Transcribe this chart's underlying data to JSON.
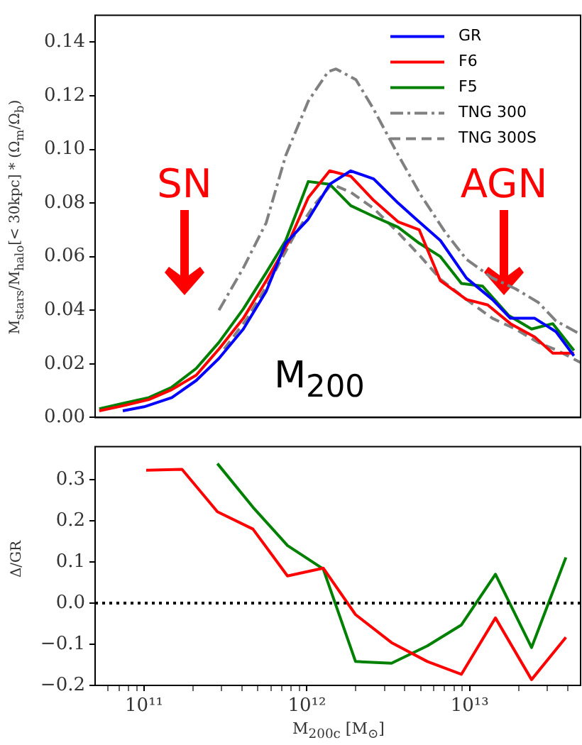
{
  "chart_data": [
    {
      "type": "line",
      "ylabel": "M$_{stars}$/M$_{halo}$[< 30kpc] * (Ω$_{m}$/Ω$_{b}$)",
      "annotations": [
        "SN",
        "AGN",
        "M$_{200}$"
      ],
      "log": "x",
      "xlim": [
        50000000000.0,
        48000000000000.0
      ],
      "ylim": [
        0,
        0.15
      ],
      "yticks": [
        {
          "value": 0,
          "label": "0.00"
        },
        0.02,
        0.04,
        0.06,
        0.08,
        {
          "value": 0.1,
          "label": "0.10"
        },
        0.12,
        0.14
      ],
      "tick_labels": "y",
      "legend": "top right",
      "series": [
        {
          "name": "GR",
          "color": "#0000ff",
          "line_style": "solid",
          "x": [
            74000000000.0,
            100000000000.0,
            148000000000.0,
            209000000000.0,
            288000000000.0,
            407000000000.0,
            562000000000.0,
            741000000000.0,
            1020000000000.0,
            1380000000000.0,
            1860000000000.0,
            2570000000000.0,
            3630000000000.0,
            4680000000000.0,
            6610000000000.0,
            9550000000000.0,
            13800000000000.0,
            17800000000000.0,
            25100000000000.0,
            33900000000000.0,
            43700000000000.0
          ],
          "values": [
            0.0025,
            0.004,
            0.0074,
            0.0138,
            0.022,
            0.033,
            0.047,
            0.065,
            0.074,
            0.087,
            0.092,
            0.089,
            0.08,
            0.074,
            0.066,
            0.052,
            0.044,
            0.037,
            0.037,
            0.032,
            0.023
          ]
        },
        {
          "name": "F6",
          "color": "#ff0000",
          "line_style": "solid",
          "x": [
            53000000000.0,
            76000000000.0,
            107000000000.0,
            148000000000.0,
            209000000000.0,
            288000000000.0,
            407000000000.0,
            562000000000.0,
            780000000000.0,
            1020000000000.0,
            1380000000000.0,
            1860000000000.0,
            2570000000000.0,
            3630000000000.0,
            4900000000000.0,
            6610000000000.0,
            9550000000000.0,
            12900000000000.0,
            17800000000000.0,
            25100000000000.0,
            32400000000000.0,
            43700000000000.0
          ],
          "values": [
            0.0025,
            0.0045,
            0.0067,
            0.0104,
            0.0158,
            0.0255,
            0.037,
            0.051,
            0.066,
            0.082,
            0.092,
            0.09,
            0.081,
            0.073,
            0.07,
            0.051,
            0.044,
            0.042,
            0.035,
            0.03,
            0.024,
            0.024
          ]
        },
        {
          "name": "F5",
          "color": "#008000",
          "line_style": "solid",
          "x": [
            53000000000.0,
            76000000000.0,
            107000000000.0,
            148000000000.0,
            209000000000.0,
            288000000000.0,
            407000000000.0,
            562000000000.0,
            741000000000.0,
            1020000000000.0,
            1380000000000.0,
            1860000000000.0,
            2570000000000.0,
            3630000000000.0,
            4900000000000.0,
            6610000000000.0,
            8900000000000.0,
            12000000000000.0,
            17400000000000.0,
            24000000000000.0,
            32400000000000.0,
            43700000000000.0
          ],
          "values": [
            0.0032,
            0.0054,
            0.0074,
            0.0113,
            0.0183,
            0.028,
            0.0405,
            0.054,
            0.066,
            0.088,
            0.087,
            0.079,
            0.075,
            0.071,
            0.065,
            0.06,
            0.05,
            0.049,
            0.038,
            0.033,
            0.035,
            0.025
          ]
        },
        {
          "name": "TNG 300",
          "color": "#808080",
          "line_style": "dashdot",
          "x": [
            288000000000.0,
            407000000000.0,
            562000000000.0,
            741000000000.0,
            1020000000000.0,
            1350000000000.0,
            1510000000000.0,
            2000000000000.0,
            2570000000000.0,
            3630000000000.0,
            5000000000000.0,
            7100000000000.0,
            9550000000000.0,
            13800000000000.0,
            19100000000000.0,
            26300000000000.0,
            33900000000000.0,
            48000000000000.0
          ],
          "values": [
            0.04,
            0.0558,
            0.0726,
            0.0977,
            0.118,
            0.129,
            0.13,
            0.126,
            0.115,
            0.098,
            0.083,
            0.069,
            0.059,
            0.052,
            0.048,
            0.043,
            0.036,
            0.031
          ]
        },
        {
          "name": "TNG 300S",
          "color": "#808080",
          "line_style": "dashed",
          "x": [
            310000000000.0,
            430000000000.0,
            600000000000.0,
            830000000000.0,
            1100000000000.0,
            1420000000000.0,
            1860000000000.0,
            2570000000000.0,
            3630000000000.0,
            5000000000000.0,
            6610000000000.0,
            9550000000000.0,
            13800000000000.0,
            19100000000000.0,
            26300000000000.0,
            34700000000000.0,
            48000000000000.0
          ],
          "values": [
            0.0255,
            0.037,
            0.0516,
            0.0675,
            0.079,
            0.087,
            0.084,
            0.078,
            0.069,
            0.06,
            0.0516,
            0.044,
            0.037,
            0.033,
            0.028,
            0.025,
            0.0205
          ]
        }
      ]
    },
    {
      "type": "line",
      "xlabel": "M$_{200c}$ [M$_{⊙}$]",
      "ylabel": "Δ/GR",
      "log": "x",
      "xlim": [
        50000000000.0,
        48000000000000.0
      ],
      "xticks": [
        {
          "value": 60000000000.0,
          "label": null
        },
        {
          "value": 70000000000.0,
          "label": null
        },
        {
          "value": 80000000000.0,
          "label": null
        },
        {
          "value": 90000000000.0,
          "label": null
        },
        {
          "value": 100000000000.0,
          "label": "10¹¹"
        },
        {
          "value": 200000000000.0,
          "label": null
        },
        {
          "value": 300000000000.0,
          "label": null
        },
        {
          "value": 400000000000.0,
          "label": null
        },
        {
          "value": 500000000000.0,
          "label": null
        },
        {
          "value": 600000000000.0,
          "label": null
        },
        {
          "value": 700000000000.0,
          "label": null
        },
        {
          "value": 800000000000.0,
          "label": null
        },
        {
          "value": 900000000000.0,
          "label": null
        },
        {
          "value": 1000000000000.0,
          "label": "10¹²"
        },
        {
          "value": 2000000000000.0,
          "label": null
        },
        {
          "value": 3000000000000.0,
          "label": null
        },
        {
          "value": 4000000000000.0,
          "label": null
        },
        {
          "value": 5000000000000.0,
          "label": null
        },
        {
          "value": 6000000000000.0,
          "label": null
        },
        {
          "value": 7000000000000.0,
          "label": null
        },
        {
          "value": 8000000000000.0,
          "label": null
        },
        {
          "value": 9000000000000.0,
          "label": null
        },
        {
          "value": 10000000000000.0,
          "label": "10¹³"
        },
        {
          "value": 20000000000000.0,
          "label": null
        },
        {
          "value": 30000000000000.0,
          "label": null
        },
        {
          "value": 40000000000000.0,
          "label": null
        }
      ],
      "ylim": [
        -0.2,
        0.38
      ],
      "yticks": [
        {
          "value": -0.2,
          "label": "−0.2"
        },
        {
          "value": -0.1,
          "label": "−0.1"
        },
        {
          "value": 0,
          "label": "0.0"
        },
        0.1,
        0.2,
        0.3
      ],
      "ref_lines": [
        {
          "axis": "y",
          "value": 0,
          "color": "#000000",
          "line_style": "dotted"
        }
      ],
      "series": [
        {
          "color": "#ff0000",
          "x": [
            103000000000.0,
            171000000000.0,
            282000000000.0,
            466000000000.0,
            760000000000.0,
            1260000000000.0,
            1990000000000.0,
            3310000000000.0,
            5500000000000.0,
            8900000000000.0,
            14400000000000.0,
            24000000000000.0,
            39000000000000.0
          ],
          "values": [
            0.323,
            0.325,
            0.222,
            0.18,
            0.066,
            0.085,
            -0.028,
            -0.096,
            -0.142,
            -0.173,
            -0.036,
            -0.186,
            -0.083
          ]
        },
        {
          "color": "#008000",
          "x": [
            282000000000.0,
            466000000000.0,
            760000000000.0,
            1260000000000.0,
            1990000000000.0,
            3310000000000.0,
            5500000000000.0,
            8900000000000.0,
            14400000000000.0,
            24000000000000.0,
            39000000000000.0
          ],
          "values": [
            0.339,
            0.233,
            0.14,
            0.083,
            -0.142,
            -0.146,
            -0.104,
            -0.053,
            0.07,
            -0.108,
            0.111
          ]
        }
      ]
    }
  ]
}
